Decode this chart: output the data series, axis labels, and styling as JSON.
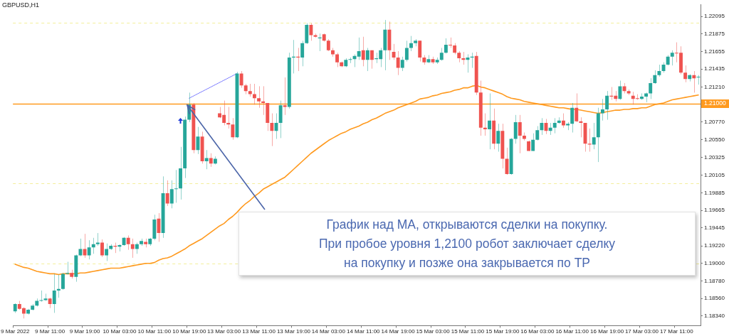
{
  "chart_data": {
    "type": "candlestick",
    "title": "GBPUSD,H1",
    "categories": [
      "9 Mar 2022",
      null,
      null,
      null,
      null,
      null,
      null,
      null,
      "9 Mar 11:00",
      null,
      null,
      null,
      null,
      null,
      null,
      null,
      "9 Mar 19:00",
      null,
      null,
      null,
      null,
      null,
      null,
      null,
      "10 Mar 03:00",
      null,
      null,
      null,
      null,
      null,
      null,
      null,
      "10 Mar 11:00",
      null,
      null,
      null,
      null,
      null,
      null,
      null,
      "10 Mar 19:00",
      null,
      null,
      null,
      null,
      null,
      null,
      null,
      "13 Mar 03:00",
      null,
      null,
      null,
      null,
      null,
      null,
      null,
      "13 Mar 11:00",
      null,
      null,
      null,
      null,
      null,
      null,
      null,
      "13 Mar 19:00",
      null,
      null,
      null,
      null,
      null,
      null,
      null,
      "14 Mar 03:00",
      null,
      null,
      null,
      null,
      null,
      null,
      null,
      "14 Mar 11:00",
      null,
      null,
      null,
      null,
      null,
      null,
      null,
      "14 Mar 19:00",
      null,
      null,
      null,
      null,
      null,
      null,
      null,
      "15 Mar 03:00",
      null,
      null,
      null,
      null,
      null,
      null,
      null,
      "15 Mar 11:00",
      null,
      null,
      null,
      null,
      null,
      null,
      null,
      "15 Mar 19:00",
      null,
      null,
      null,
      null,
      null,
      null,
      null,
      "16 Mar 03:00",
      null,
      null,
      null,
      null,
      null,
      null,
      null,
      "16 Mar 11:00",
      null,
      null,
      null,
      null,
      null,
      null,
      null,
      "16 Mar 19:00",
      null,
      null,
      null,
      null,
      null,
      null,
      null,
      "17 Mar 03:00",
      null,
      null,
      null,
      null,
      null,
      null,
      null,
      "17 Mar 11:00",
      null,
      null,
      null,
      null,
      null
    ],
    "ohlc": [
      [
        1.184,
        1.185,
        1.1838,
        1.1849
      ],
      [
        1.1849,
        1.1853,
        1.1842,
        1.1843
      ],
      [
        1.1844,
        1.1845,
        1.1831,
        1.1837
      ],
      [
        1.1837,
        1.1843,
        1.1836,
        1.1842
      ],
      [
        1.1842,
        1.1849,
        1.1841,
        1.1847
      ],
      [
        1.1847,
        1.1856,
        1.1846,
        1.1853
      ],
      [
        1.1853,
        1.1866,
        1.1852,
        1.1854
      ],
      [
        1.1854,
        1.1862,
        1.1853,
        1.1856
      ],
      [
        1.1856,
        1.1857,
        1.1844,
        1.1849
      ],
      [
        1.1849,
        1.1887,
        1.1838,
        1.1866
      ],
      [
        1.1866,
        1.1886,
        1.1857,
        1.1868
      ],
      [
        1.1868,
        1.1888,
        1.1867,
        1.1887
      ],
      [
        1.1887,
        1.1902,
        1.1886,
        1.1888
      ],
      [
        1.1888,
        1.1892,
        1.1881,
        1.1883
      ],
      [
        1.1883,
        1.1911,
        1.1877,
        1.191
      ],
      [
        1.191,
        1.1931,
        1.1909,
        1.1918
      ],
      [
        1.1918,
        1.1937,
        1.1907,
        1.191
      ],
      [
        1.191,
        1.1929,
        1.1905,
        1.192
      ],
      [
        1.192,
        1.1932,
        1.1912,
        1.1924
      ],
      [
        1.1924,
        1.1938,
        1.1922,
        1.1926
      ],
      [
        1.1926,
        1.193,
        1.1908,
        1.191
      ],
      [
        1.191,
        1.1925,
        1.1903,
        1.1918
      ],
      [
        1.1918,
        1.1924,
        1.1917,
        1.1922
      ],
      [
        1.1922,
        1.1926,
        1.1913,
        1.1921
      ],
      [
        1.1921,
        1.1924,
        1.1915,
        1.1923
      ],
      [
        1.1923,
        1.1933,
        1.1922,
        1.1932
      ],
      [
        1.1932,
        1.1935,
        1.1917,
        1.1924
      ],
      [
        1.1924,
        1.1931,
        1.1907,
        1.1918
      ],
      [
        1.1918,
        1.1926,
        1.1912,
        1.1924
      ],
      [
        1.1924,
        1.1931,
        1.1922,
        1.1928
      ],
      [
        1.1927,
        1.1931,
        1.192,
        1.1924
      ],
      [
        1.1924,
        1.1932,
        1.1922,
        1.1931
      ],
      [
        1.1931,
        1.1961,
        1.1929,
        1.1955
      ],
      [
        1.1956,
        1.1963,
        1.1927,
        1.1938
      ],
      [
        1.1938,
        1.2009,
        1.1932,
        1.1988
      ],
      [
        1.1988,
        1.2004,
        1.1972,
        1.1975
      ],
      [
        1.1975,
        1.2004,
        1.1969,
        1.1993
      ],
      [
        1.1993,
        1.2017,
        1.1976,
        1.1994
      ],
      [
        1.1994,
        1.2046,
        1.198,
        1.2019
      ],
      [
        1.2019,
        1.2084,
        1.2007,
        1.208
      ],
      [
        1.208,
        1.2114,
        1.2077,
        1.2099
      ],
      [
        1.2099,
        1.2101,
        1.2038,
        1.2042
      ],
      [
        1.2042,
        1.2071,
        1.2037,
        1.2059
      ],
      [
        1.2059,
        1.2065,
        1.2025,
        1.2028
      ],
      [
        1.2028,
        1.2042,
        1.2018,
        1.2032
      ],
      [
        1.2032,
        1.2038,
        1.2021,
        1.2025
      ],
      [
        1.2025,
        1.2034,
        1.2024,
        1.2031
      ],
      [
        1.2088,
        1.2096,
        1.2082,
        1.2083
      ],
      [
        1.2086,
        1.2104,
        1.2073,
        1.2076
      ],
      [
        1.2076,
        1.2096,
        1.2069,
        1.2074
      ],
      [
        1.2074,
        1.2082,
        1.2055,
        1.2058
      ],
      [
        1.2058,
        1.214,
        1.2057,
        1.2138
      ],
      [
        1.2138,
        1.2141,
        1.212,
        1.2123
      ],
      [
        1.2123,
        1.2125,
        1.2112,
        1.2116
      ],
      [
        1.2116,
        1.2125,
        1.2109,
        1.2112
      ],
      [
        1.2112,
        1.2125,
        1.2099,
        1.2107
      ],
      [
        1.2107,
        1.2122,
        1.2095,
        1.2103
      ],
      [
        1.2103,
        1.2122,
        1.2086,
        1.2101
      ],
      [
        1.2101,
        1.2101,
        1.2066,
        1.2076
      ],
      [
        1.2076,
        1.2088,
        1.2047,
        1.2066
      ],
      [
        1.2066,
        1.2088,
        1.2056,
        1.2076
      ],
      [
        1.2076,
        1.2104,
        1.2057,
        1.2098
      ],
      [
        1.2098,
        1.2133,
        1.2086,
        1.2096
      ],
      [
        1.2096,
        1.2164,
        1.2094,
        1.2158
      ],
      [
        1.2158,
        1.218,
        1.2138,
        1.2159
      ],
      [
        1.2159,
        1.217,
        1.2141,
        1.2158
      ],
      [
        1.2158,
        1.2179,
        1.2147,
        1.2176
      ],
      [
        1.2176,
        1.2201,
        1.2175,
        1.2199
      ],
      [
        1.2199,
        1.2201,
        1.2179,
        1.2186
      ],
      [
        1.2186,
        1.2188,
        1.2183,
        1.2184
      ],
      [
        1.2182,
        1.2188,
        1.2166,
        1.2183
      ],
      [
        1.2187,
        1.2188,
        1.2178,
        1.2179
      ],
      [
        1.2179,
        1.2181,
        1.2166,
        1.2167
      ],
      [
        1.2167,
        1.217,
        1.2159,
        1.2162
      ],
      [
        1.2162,
        1.2164,
        1.2146,
        1.2152
      ],
      [
        1.2152,
        1.2153,
        1.2146,
        1.2147
      ],
      [
        1.2147,
        1.2157,
        1.2146,
        1.2155
      ],
      [
        1.2155,
        1.2158,
        1.2151,
        1.2156
      ],
      [
        1.2156,
        1.2162,
        1.2146,
        1.216
      ],
      [
        1.2159,
        1.2183,
        1.2155,
        1.2166
      ],
      [
        1.2167,
        1.2184,
        1.2147,
        1.2155
      ],
      [
        1.2155,
        1.217,
        1.2141,
        1.2167
      ],
      [
        1.2167,
        1.2167,
        1.2144,
        1.2155
      ],
      [
        1.2156,
        1.2164,
        1.2151,
        1.2157
      ],
      [
        1.2156,
        1.217,
        1.2146,
        1.2167
      ],
      [
        1.2167,
        1.2205,
        1.2142,
        1.2193
      ],
      [
        1.2193,
        1.2203,
        1.2155,
        1.2167
      ],
      [
        1.2165,
        1.2175,
        1.2155,
        1.2158
      ],
      [
        1.2158,
        1.2166,
        1.2136,
        1.2145
      ],
      [
        1.2145,
        1.2159,
        1.2141,
        1.2155
      ],
      [
        1.2155,
        1.2179,
        1.2153,
        1.217
      ],
      [
        1.217,
        1.2185,
        1.2166,
        1.2176
      ],
      [
        1.2176,
        1.2181,
        1.2172,
        1.2179
      ],
      [
        1.2179,
        1.2179,
        1.2153,
        1.2158
      ],
      [
        1.2158,
        1.2161,
        1.2149,
        1.2152
      ],
      [
        1.2152,
        1.2161,
        1.2151,
        1.2156
      ],
      [
        1.2156,
        1.2159,
        1.215,
        1.2152
      ],
      [
        1.2152,
        1.2158,
        1.215,
        1.2155
      ],
      [
        1.2155,
        1.217,
        1.2154,
        1.2164
      ],
      [
        1.2164,
        1.2182,
        1.2163,
        1.2174
      ],
      [
        1.2174,
        1.2183,
        1.217,
        1.2173
      ],
      [
        1.2173,
        1.2176,
        1.2162,
        1.2164
      ],
      [
        1.2164,
        1.2166,
        1.2152,
        1.2157
      ],
      [
        1.2157,
        1.2165,
        1.2149,
        1.2155
      ],
      [
        1.2155,
        1.2162,
        1.2139,
        1.2158
      ],
      [
        1.2158,
        1.2164,
        1.2145,
        1.2159
      ],
      [
        1.216,
        1.2165,
        1.2111,
        1.2114
      ],
      [
        1.2114,
        1.2129,
        1.206,
        1.207
      ],
      [
        1.207,
        1.2088,
        1.206,
        1.2068
      ],
      [
        1.2068,
        1.2113,
        1.2043,
        1.2079
      ],
      [
        1.2079,
        1.2094,
        1.2043,
        1.205
      ],
      [
        1.205,
        1.2075,
        1.204,
        1.2066
      ],
      [
        1.2066,
        1.2075,
        1.2019,
        1.2031
      ],
      [
        1.2031,
        1.2045,
        1.2011,
        1.2012
      ],
      [
        1.2012,
        1.2057,
        1.2011,
        1.2056
      ],
      [
        1.2056,
        1.2086,
        1.205,
        1.2077
      ],
      [
        1.2077,
        1.2086,
        1.2038,
        1.206
      ],
      [
        1.206,
        1.2064,
        1.2054,
        1.2056
      ],
      [
        1.2053,
        1.2054,
        1.2041,
        1.2041
      ],
      [
        1.2041,
        1.2063,
        1.2041,
        1.2055
      ],
      [
        1.2055,
        1.2072,
        1.2054,
        1.2067
      ],
      [
        1.2067,
        1.2082,
        1.2061,
        1.2076
      ],
      [
        1.2076,
        1.2081,
        1.2062,
        1.2066
      ],
      [
        1.2066,
        1.2076,
        1.2061,
        1.207
      ],
      [
        1.207,
        1.2082,
        1.2063,
        1.2076
      ],
      [
        1.2076,
        1.2083,
        1.2075,
        1.2079
      ],
      [
        1.2079,
        1.2088,
        1.207,
        1.2073
      ],
      [
        1.2073,
        1.2077,
        1.2067,
        1.2075
      ],
      [
        1.2075,
        1.2101,
        1.2064,
        1.2095
      ],
      [
        1.2095,
        1.2113,
        1.2077,
        1.2078
      ],
      [
        1.2078,
        1.2083,
        1.2058,
        1.2076
      ],
      [
        1.2076,
        1.2076,
        1.204,
        1.205
      ],
      [
        1.205,
        1.2069,
        1.204,
        1.2049
      ],
      [
        1.2049,
        1.2076,
        1.2043,
        1.2058
      ],
      [
        1.2058,
        1.2095,
        1.2027,
        1.2088
      ],
      [
        1.2088,
        1.2106,
        1.2079,
        1.2093
      ],
      [
        1.2093,
        1.2116,
        1.208,
        1.211
      ],
      [
        1.211,
        1.2121,
        1.2105,
        1.2109
      ],
      [
        1.211,
        1.2116,
        1.2103,
        1.2106
      ],
      [
        1.2106,
        1.2129,
        1.2105,
        1.2122
      ],
      [
        1.2122,
        1.2126,
        1.2113,
        1.2116
      ],
      [
        1.2116,
        1.2118,
        1.2111,
        1.2113
      ],
      [
        1.211,
        1.2115,
        1.2099,
        1.2106
      ],
      [
        1.2107,
        1.2112,
        1.2105,
        1.2106
      ],
      [
        1.2106,
        1.2113,
        1.2105,
        1.2109
      ],
      [
        1.2109,
        1.2114,
        1.2102,
        1.2113
      ],
      [
        1.2113,
        1.2132,
        1.2106,
        1.2126
      ],
      [
        1.2126,
        1.2142,
        1.2125,
        1.2136
      ],
      [
        1.2136,
        1.2149,
        1.2134,
        1.2141
      ],
      [
        1.2141,
        1.2152,
        1.2139,
        1.2149
      ],
      [
        1.2149,
        1.2161,
        1.2148,
        1.2159
      ],
      [
        1.2159,
        1.2167,
        1.2148,
        1.2164
      ],
      [
        1.2164,
        1.2177,
        1.2152,
        1.2163
      ],
      [
        1.2164,
        1.2172,
        1.2137,
        1.2139
      ],
      [
        1.2139,
        1.2148,
        1.2127,
        1.2131
      ],
      [
        1.2131,
        1.2137,
        1.2128,
        1.2136
      ],
      [
        1.2136,
        1.2141,
        1.2114,
        1.2132
      ],
      [
        1.2133,
        1.2136,
        1.2124,
        1.2134
      ]
    ],
    "colors": [
      "#26a69a",
      "#ef5350",
      "#ef5350",
      "#26a69a",
      "#26a69a",
      "#26a69a",
      "#26a69a",
      "#26a69a",
      "#ef5350",
      "#26a69a",
      "#26a69a",
      "#26a69a",
      "#26a69a",
      "#ef5350",
      "#26a69a",
      "#26a69a",
      "#ef5350",
      "#26a69a",
      "#26a69a",
      "#26a69a",
      "#ef5350",
      "#26a69a",
      "#26a69a",
      "#ef5350",
      "#26a69a",
      "#26a69a",
      "#ef5350",
      "#ef5350",
      "#26a69a",
      "#26a69a",
      "#ef5350",
      "#26a69a",
      "#26a69a",
      "#ef5350",
      "#26a69a",
      "#ef5350",
      "#26a69a",
      "#26a69a",
      "#26a69a",
      "#26a69a",
      "#26a69a",
      "#ef5350",
      "#26a69a",
      "#ef5350",
      "#26a69a",
      "#ef5350",
      "#26a69a",
      "#ef5350",
      "#ef5350",
      "#ef5350",
      "#ef5350",
      "#26a69a",
      "#ef5350",
      "#ef5350",
      "#ef5350",
      "#ef5350",
      "#ef5350",
      "#ef5350",
      "#ef5350",
      "#ef5350",
      "#26a69a",
      "#26a69a",
      "#ef5350",
      "#26a69a",
      "#26a69a",
      "#ef5350",
      "#26a69a",
      "#26a69a",
      "#ef5350",
      "#ef5350",
      "#26a69a",
      "#ef5350",
      "#ef5350",
      "#ef5350",
      "#ef5350",
      "#ef5350",
      "#26a69a",
      "#26a69a",
      "#26a69a",
      "#26a69a",
      "#ef5350",
      "#26a69a",
      "#ef5350",
      "#26a69a",
      "#26a69a",
      "#26a69a",
      "#ef5350",
      "#ef5350",
      "#ef5350",
      "#26a69a",
      "#26a69a",
      "#26a69a",
      "#26a69a",
      "#ef5350",
      "#ef5350",
      "#26a69a",
      "#ef5350",
      "#26a69a",
      "#26a69a",
      "#26a69a",
      "#ef5350",
      "#ef5350",
      "#ef5350",
      "#ef5350",
      "#26a69a",
      "#26a69a",
      "#ef5350",
      "#ef5350",
      "#ef5350",
      "#26a69a",
      "#ef5350",
      "#26a69a",
      "#ef5350",
      "#ef5350",
      "#26a69a",
      "#26a69a",
      "#ef5350",
      "#ef5350",
      "#ef5350",
      "#26a69a",
      "#26a69a",
      "#26a69a",
      "#ef5350",
      "#26a69a",
      "#26a69a",
      "#26a69a",
      "#ef5350",
      "#26a69a",
      "#26a69a",
      "#ef5350",
      "#ef5350",
      "#ef5350",
      "#ef5350",
      "#26a69a",
      "#26a69a",
      "#26a69a",
      "#26a69a",
      "#ef5350",
      "#ef5350",
      "#26a69a",
      "#ef5350",
      "#ef5350",
      "#ef5350",
      "#ef5350",
      "#26a69a",
      "#26a69a",
      "#26a69a",
      "#26a69a",
      "#26a69a",
      "#26a69a",
      "#26a69a",
      "#26a69a",
      "#ef5350",
      "#ef5350",
      "#ef5350",
      "#26a69a",
      "#ef5350",
      "#26a69a"
    ],
    "series": [
      {
        "type": "line",
        "color": "#ff9a1f",
        "values": [
          1.1899,
          1.1897,
          1.1895,
          1.1894,
          1.1892,
          1.189,
          1.1889,
          1.1888,
          1.1887,
          1.1887,
          1.1886,
          1.1887,
          1.1887,
          1.1887,
          1.1887,
          1.1888,
          1.1888,
          1.1889,
          1.189,
          1.1891,
          1.1892,
          1.1893,
          1.1894,
          1.1894,
          1.1894,
          1.1895,
          1.1896,
          1.1897,
          1.1898,
          1.1899,
          1.19,
          1.19,
          1.1901,
          1.1904,
          1.1906,
          1.1907,
          1.1909,
          1.1912,
          1.1915,
          1.1918,
          1.1922,
          1.1925,
          1.1928,
          1.1931,
          1.1935,
          1.1939,
          1.1943,
          1.1947,
          1.195,
          1.1955,
          1.1959,
          1.1964,
          1.197,
          1.1975,
          1.1979,
          1.1984,
          1.1988,
          1.1993,
          1.1996,
          1.1999,
          1.2002,
          1.2005,
          1.2008,
          1.2013,
          1.2018,
          1.2023,
          1.2028,
          1.2033,
          1.2038,
          1.2042,
          1.2046,
          1.205,
          1.2054,
          1.2057,
          1.206,
          1.2063,
          1.2065,
          1.2068,
          1.207,
          1.2072,
          1.2075,
          1.2077,
          1.208,
          1.2082,
          1.2085,
          1.2088,
          1.209,
          1.2092,
          1.2095,
          1.2097,
          1.2099,
          1.2101,
          1.2103,
          1.2106,
          1.2107,
          1.2108,
          1.211,
          1.2111,
          1.2113,
          1.2114,
          1.2115,
          1.2117,
          1.2118,
          1.212,
          1.212,
          1.2122,
          1.2123,
          1.2121,
          1.212,
          1.2118,
          1.2116,
          1.2114,
          1.2112,
          1.2109,
          1.2107,
          1.2106,
          1.2105,
          1.2103,
          1.2102,
          1.2101,
          1.21,
          1.2099,
          1.2098,
          1.2097,
          1.2096,
          1.2095,
          1.2095,
          1.2094,
          1.2093,
          1.2093,
          1.2092,
          1.2091,
          1.209,
          1.2089,
          1.2088,
          1.2089,
          1.209,
          1.2091,
          1.2092,
          1.2092,
          1.2093,
          1.2093,
          1.2094,
          1.2094,
          1.2095,
          1.2095,
          1.2097,
          1.2099,
          1.21,
          1.2101,
          1.2103,
          1.2105,
          1.2106,
          1.2107,
          1.2108,
          1.2109,
          1.211,
          1.2111
        ]
      },
      {
        "type": "line",
        "color": "#6b6bff",
        "line_style": "dotted",
        "values": [
          null,
          null,
          null,
          null,
          null,
          null,
          null,
          null,
          null,
          null,
          null,
          null,
          null,
          null,
          null,
          null,
          null,
          null,
          null,
          null,
          null,
          null,
          null,
          null,
          null,
          null,
          null,
          null,
          null,
          null,
          null,
          null,
          null,
          null,
          null,
          null,
          null,
          null,
          null,
          null,
          1.2107,
          null,
          null,
          null,
          null,
          null,
          null,
          null,
          null,
          null,
          null,
          1.2138,
          null,
          null,
          null,
          null,
          null,
          null,
          null,
          null,
          null,
          null,
          null,
          null,
          null,
          null,
          null,
          null,
          null,
          null,
          null,
          null,
          null,
          null,
          null,
          null,
          null,
          null,
          null,
          null,
          null,
          null,
          null,
          null,
          null,
          null,
          null,
          null,
          null,
          null,
          null,
          null,
          null,
          null,
          null,
          null,
          null,
          null,
          null,
          null,
          null,
          null,
          null,
          null,
          null,
          null,
          null,
          null,
          null,
          null,
          null,
          null,
          null,
          null,
          null,
          null,
          null,
          null,
          null,
          null,
          null,
          null,
          null,
          null,
          null,
          null,
          null,
          null,
          null,
          null,
          null,
          null,
          null,
          null,
          null,
          null,
          null,
          null,
          null,
          null,
          null,
          null,
          null,
          null,
          null,
          null,
          null,
          null,
          null,
          null,
          null,
          null,
          null,
          null,
          null,
          null,
          null,
          null
        ]
      }
    ],
    "ylim": [
      1.1822,
      1.2224
    ],
    "yticks": [
      1.22095,
      1.21875,
      1.21655,
      1.21435,
      {
        "value": 1.2121,
        "label": "1.21210"
      },
      {
        "value": 1.2077,
        "label": "1.20770"
      },
      {
        "value": 1.2055,
        "label": "1.20550"
      },
      1.20325,
      1.20105,
      1.19885,
      1.19665,
      1.19445,
      {
        "value": 1.1922,
        "label": "1.19220"
      },
      {
        "value": 1.19,
        "label": "1.19000"
      },
      {
        "value": 1.1878,
        "label": "1.18780"
      },
      {
        "value": 1.1856,
        "label": "1.18560"
      },
      {
        "value": 1.1834,
        "label": "1.18340"
      }
    ],
    "ref_lines": [
      {
        "axis": "y",
        "value": 1.21,
        "label": "1.21000",
        "color": "#ff9a1f"
      },
      {
        "axis": "y",
        "value": 1.2202,
        "label": null,
        "color": "#f3ee9a",
        "line_style": "dashed"
      },
      {
        "axis": "y",
        "value": 1.2,
        "label": null,
        "color": "#f3ee9a",
        "line_style": "dashed"
      },
      {
        "axis": "y",
        "value": 1.19,
        "label": null,
        "color": "#f3ee9a",
        "line_style": "dashed"
      }
    ],
    "annotations": [
      "График над MA, открываются сделки на покупку.\nПри пробое уровня 1,2100 робот заключает сделку\nна покупку и позже она закрывается по TP"
    ],
    "marker": "none",
    "grid": false,
    "legend": false
  }
}
